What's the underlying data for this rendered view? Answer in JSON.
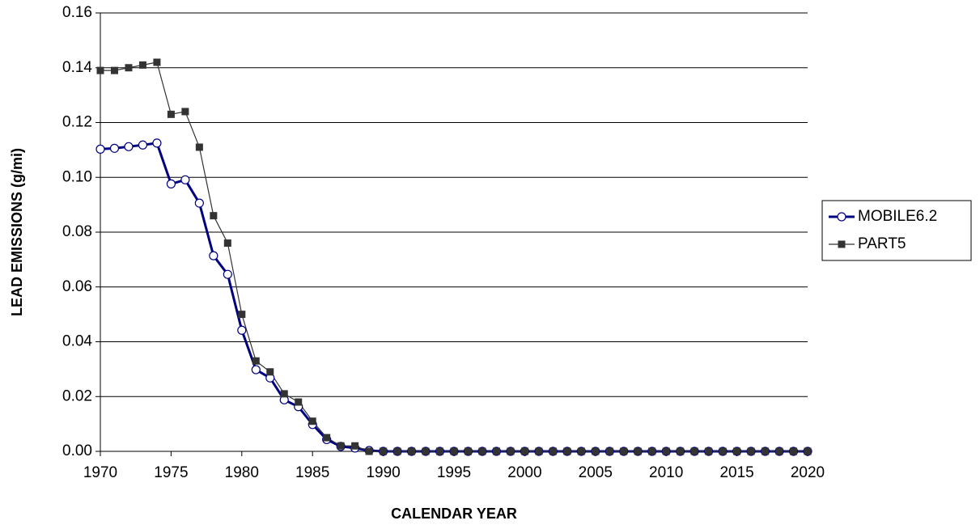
{
  "chart_data": {
    "type": "line",
    "x_label": "CALENDAR YEAR",
    "y_label": "LEAD EMISSIONS (g/mi)",
    "x": [
      1970,
      1971,
      1972,
      1973,
      1974,
      1975,
      1976,
      1977,
      1978,
      1979,
      1980,
      1981,
      1982,
      1983,
      1984,
      1985,
      1986,
      1987,
      1988,
      1989,
      1990,
      1991,
      1992,
      1993,
      1994,
      1995,
      1996,
      1997,
      1998,
      1999,
      2000,
      2001,
      2002,
      2003,
      2004,
      2005,
      2006,
      2007,
      2008,
      2009,
      2010,
      2011,
      2012,
      2013,
      2014,
      2015,
      2016,
      2017,
      2018,
      2019,
      2020
    ],
    "series": [
      {
        "name": "MOBILE6.2",
        "color": "#000080",
        "marker": "circle",
        "values": [
          0.1103,
          0.1106,
          0.1112,
          0.1118,
          0.1125,
          0.0976,
          0.0991,
          0.0906,
          0.0714,
          0.0646,
          0.0442,
          0.0298,
          0.0268,
          0.0188,
          0.0163,
          0.0098,
          0.0043,
          0.0018,
          0.0012,
          0.0003,
          0,
          0,
          0,
          0,
          0,
          0,
          0,
          0,
          0,
          0,
          0,
          0,
          0,
          0,
          0,
          0,
          0,
          0,
          0,
          0,
          0,
          0,
          0,
          0,
          0,
          0,
          0,
          0,
          0,
          0,
          0
        ]
      },
      {
        "name": "PART5",
        "color": "#333333",
        "marker": "square",
        "values": [
          0.139,
          0.139,
          0.14,
          0.141,
          0.142,
          0.123,
          0.124,
          0.111,
          0.086,
          0.076,
          0.05,
          0.033,
          0.029,
          0.021,
          0.018,
          0.011,
          0.005,
          0.002,
          0.002,
          0.0,
          0,
          0,
          0,
          0,
          0,
          0,
          0,
          0,
          0,
          0,
          0,
          0,
          0,
          0,
          0,
          0,
          0,
          0,
          0,
          0,
          0,
          0,
          0,
          0,
          0,
          0,
          0,
          0,
          0,
          0,
          0
        ]
      }
    ],
    "xlim": [
      1970,
      2020
    ],
    "xticks": [
      1970,
      1975,
      1980,
      1985,
      1990,
      1995,
      2000,
      2005,
      2010,
      2015,
      2020
    ],
    "ylim": [
      0,
      0.16
    ],
    "yticks": [
      {
        "value": 0,
        "label": "0.00"
      },
      {
        "value": 0.02,
        "label": "0.02"
      },
      {
        "value": 0.04,
        "label": "0.04"
      },
      {
        "value": 0.06,
        "label": "0.06"
      },
      {
        "value": 0.08,
        "label": "0.08"
      },
      {
        "value": 0.1,
        "label": "0.10"
      },
      {
        "value": 0.12,
        "label": "0.12"
      },
      {
        "value": 0.14,
        "label": "0.14"
      },
      {
        "value": 0.16,
        "label": "0.16"
      }
    ],
    "grid": true,
    "legend": "right"
  }
}
